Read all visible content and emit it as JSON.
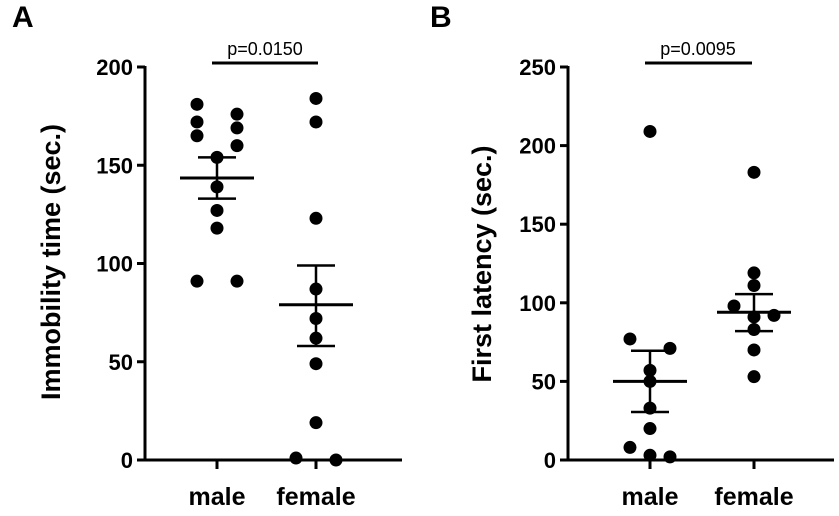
{
  "chart_data": [
    {
      "type": "scatter",
      "panel_label": "A",
      "title": "",
      "xlabel": "",
      "ylabel": "Immobility time (sec.)",
      "categories": [
        "male",
        "female"
      ],
      "ylim": [
        0,
        200
      ],
      "yticks": [
        "0",
        "50",
        "100",
        "150",
        "200"
      ],
      "series": [
        {
          "name": "male",
          "values": [
            181,
            176,
            172,
            169,
            165,
            160,
            154,
            139,
            127,
            118,
            91,
            91
          ]
        },
        {
          "name": "female",
          "values": [
            184,
            172,
            123,
            87,
            72,
            62,
            49,
            19,
            0,
            1
          ]
        }
      ],
      "summary": [
        {
          "name": "male",
          "mean": 143.5,
          "sem_low": 133,
          "sem_high": 154
        },
        {
          "name": "female",
          "mean": 79,
          "sem_low": 58,
          "sem_high": 99
        }
      ],
      "annotation": "p=0.0150",
      "color": "#000000"
    },
    {
      "type": "scatter",
      "panel_label": "B",
      "title": "",
      "xlabel": "",
      "ylabel": "First latency (sec.)",
      "categories": [
        "male",
        "female"
      ],
      "ylim": [
        0,
        250
      ],
      "yticks": [
        "0",
        "50",
        "100",
        "150",
        "200",
        "250"
      ],
      "series": [
        {
          "name": "male",
          "values": [
            209,
            77,
            71,
            57,
            50,
            33,
            20,
            8,
            3,
            2
          ]
        },
        {
          "name": "female",
          "values": [
            183,
            119,
            111,
            98,
            92,
            91,
            83,
            70,
            53
          ]
        }
      ],
      "summary": [
        {
          "name": "male",
          "mean": 50,
          "sem_low": 30.5,
          "sem_high": 69.5
        },
        {
          "name": "female",
          "mean": 94,
          "sem_low": 82,
          "sem_high": 105.5
        }
      ],
      "annotation": "p=0.0095",
      "color": "#000000"
    }
  ]
}
